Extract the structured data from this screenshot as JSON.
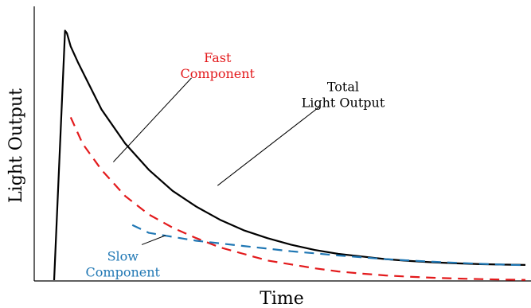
{
  "chart_data": {
    "type": "line",
    "title": "",
    "xlabel": "Time",
    "ylabel": "Light Output",
    "xlim": [
      0,
      10
    ],
    "ylim": [
      0,
      1
    ],
    "grid": false,
    "series": [
      {
        "name": "Total Light Output",
        "color": "#000000",
        "dash": "solid",
        "label_lines": [
          "Total",
          "Light Output"
        ],
        "x": [
          0.0,
          0.23,
          0.27,
          0.35,
          0.5,
          0.75,
          1.0,
          1.5,
          2.0,
          2.5,
          3.0,
          3.5,
          4.0,
          4.5,
          5.0,
          5.5,
          6.0,
          6.5,
          7.0,
          7.5,
          8.0,
          8.5,
          9.0,
          9.5,
          9.95
        ],
        "y": [
          0.0,
          0.95,
          0.94,
          0.89,
          0.83,
          0.74,
          0.65,
          0.52,
          0.42,
          0.34,
          0.28,
          0.23,
          0.19,
          0.16,
          0.135,
          0.115,
          0.1,
          0.09,
          0.08,
          0.073,
          0.068,
          0.064,
          0.061,
          0.059,
          0.058
        ]
      },
      {
        "name": "Fast Component",
        "color": "#e31a1c",
        "dash": "dashed",
        "label_lines": [
          "Fast",
          "Component"
        ],
        "x": [
          0.35,
          0.6,
          1.0,
          1.5,
          2.0,
          2.5,
          3.0,
          3.5,
          4.0,
          4.5,
          5.0,
          5.5,
          6.0,
          6.5,
          7.0,
          7.5,
          8.0,
          8.5,
          9.0,
          9.5,
          9.95
        ],
        "y": [
          0.62,
          0.52,
          0.42,
          0.32,
          0.25,
          0.2,
          0.16,
          0.125,
          0.1,
          0.075,
          0.06,
          0.045,
          0.033,
          0.025,
          0.018,
          0.013,
          0.009,
          0.006,
          0.004,
          0.002,
          0.001
        ]
      },
      {
        "name": "Slow Component",
        "color": "#1f77b4",
        "dash": "dashed",
        "label_lines": [
          "Slow",
          "Component"
        ],
        "x": [
          1.65,
          2.0,
          2.5,
          3.0,
          3.5,
          4.0,
          4.5,
          5.0,
          5.5,
          6.0,
          6.5,
          7.0,
          7.5,
          8.0,
          8.5,
          9.0,
          9.5,
          9.95
        ],
        "y": [
          0.21,
          0.18,
          0.165,
          0.15,
          0.14,
          0.13,
          0.12,
          0.11,
          0.102,
          0.094,
          0.087,
          0.08,
          0.075,
          0.07,
          0.066,
          0.062,
          0.059,
          0.057
        ]
      }
    ],
    "annotations": [
      {
        "series": "Fast Component",
        "label_at": [
          3.45,
          0.83
        ],
        "line_from": [
          2.9,
          0.77
        ],
        "line_to": [
          1.25,
          0.45
        ]
      },
      {
        "series": "Total Light Output",
        "label_at": [
          6.1,
          0.72
        ],
        "line_from": [
          5.6,
          0.66
        ],
        "line_to": [
          3.45,
          0.36
        ]
      },
      {
        "series": "Slow Component",
        "label_at": [
          1.45,
          0.075
        ],
        "line_from": [
          1.85,
          0.135
        ],
        "line_to": [
          2.35,
          0.17
        ]
      }
    ]
  }
}
